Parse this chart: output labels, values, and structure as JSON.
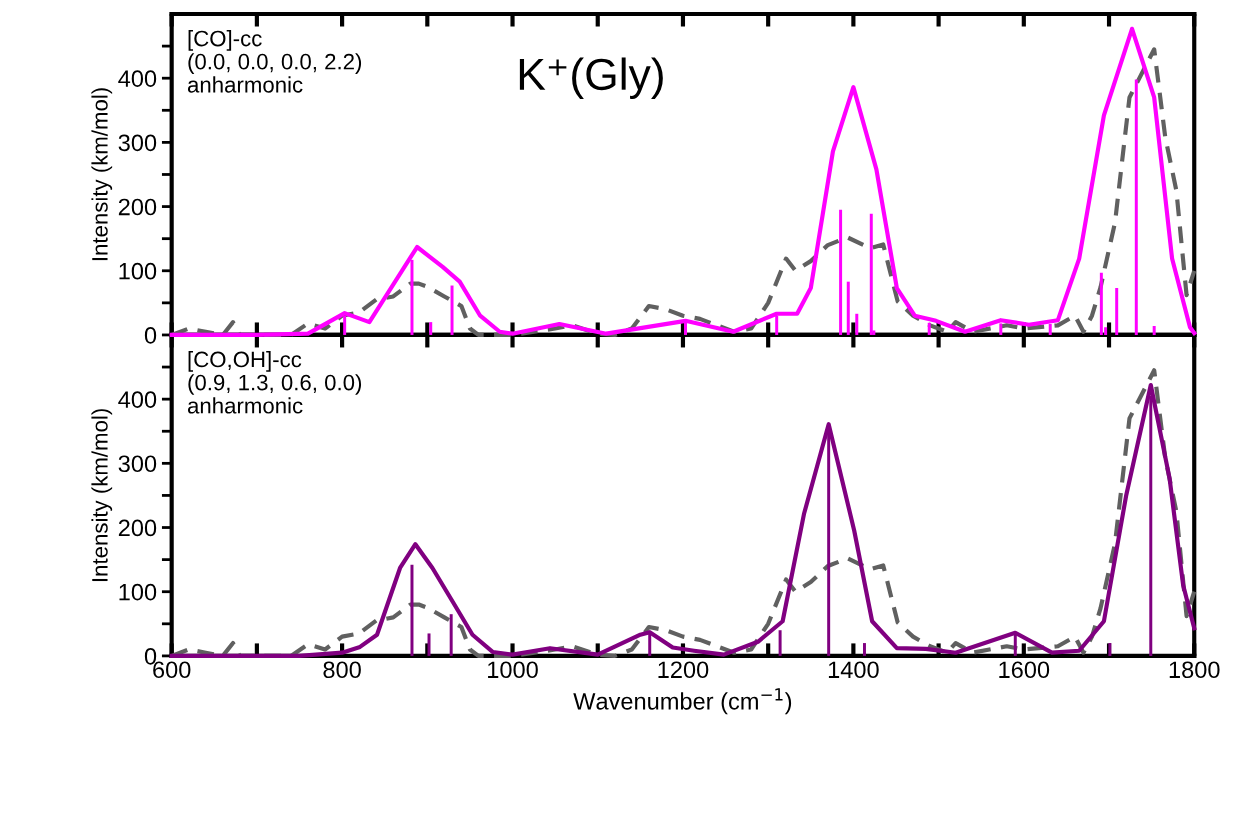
{
  "chart_data": [
    {
      "type": "line",
      "ylabel": "Intensity (km/mol)",
      "annotations": [
        "[CO]-cc\n(0.0, 0.0, 0.0, 2.2)\nanharmonic",
        "K⁺(Gly)"
      ],
      "xlim": [
        600,
        1800
      ],
      "xticks": [
        {
          "value": 600,
          "label": null
        },
        {
          "value": 700,
          "label": null
        },
        {
          "value": 800,
          "label": null
        },
        {
          "value": 900,
          "label": null
        },
        {
          "value": 1000,
          "label": null
        },
        {
          "value": 1100,
          "label": null
        },
        {
          "value": 1200,
          "label": null
        },
        {
          "value": 1300,
          "label": null
        },
        {
          "value": 1400,
          "label": null
        },
        {
          "value": 1500,
          "label": null
        },
        {
          "value": 1600,
          "label": null
        },
        {
          "value": 1700,
          "label": null
        },
        {
          "value": 1800,
          "label": null
        }
      ],
      "ylim": [
        0,
        500
      ],
      "yticks": [
        0,
        {
          "value": 50,
          "label": null
        },
        100,
        {
          "value": 150,
          "label": null
        },
        200,
        {
          "value": 250,
          "label": null
        },
        300,
        {
          "value": 350,
          "label": null
        },
        400,
        {
          "value": 450,
          "label": null
        }
      ],
      "tick_labels": "y",
      "grid": false,
      "legend": false,
      "series": [
        {
          "type": "line",
          "line_style": "dashed",
          "color": "#606060",
          "x": [
            600,
            620,
            640,
            660,
            672,
            680,
            740,
            760,
            780,
            800,
            820,
            840,
            860,
            880,
            890,
            900,
            920,
            940,
            950,
            960,
            1000,
            1050,
            1070,
            1100,
            1120,
            1140,
            1160,
            1180,
            1200,
            1220,
            1240,
            1260,
            1280,
            1300,
            1321,
            1332,
            1350,
            1370,
            1393,
            1420,
            1435,
            1452,
            1470,
            1490,
            1510,
            1520,
            1540,
            1580,
            1600,
            1640,
            1660,
            1670,
            1680,
            1690,
            1707,
            1724,
            1753,
            1766,
            1779,
            1791,
            1800
          ],
          "values": [
            0,
            10,
            5,
            0,
            20,
            0,
            0,
            18,
            10,
            30,
            35,
            55,
            60,
            80,
            80,
            75,
            60,
            45,
            10,
            0,
            0,
            10,
            15,
            2,
            0,
            10,
            45,
            40,
            30,
            25,
            15,
            5,
            10,
            50,
            119,
            100,
            115,
            140,
            152,
            135,
            141,
            52,
            30,
            15,
            5,
            20,
            5,
            15,
            10,
            15,
            30,
            5,
            30,
            74,
            175,
            370,
            445,
            308,
            225,
            62,
            100
          ]
        },
        {
          "line_style": "solid",
          "color": "#ff00ff",
          "x": [
            600,
            700,
            760,
            803,
            832,
            888,
            918,
            938,
            962,
            985,
            1000,
            1055,
            1110,
            1203,
            1259,
            1310,
            1334,
            1350,
            1376,
            1400,
            1427,
            1451,
            1472,
            1497,
            1531,
            1573,
            1606,
            1640,
            1665,
            1694,
            1727,
            1753,
            1774,
            1795,
            1800
          ],
          "values": [
            0,
            0,
            2,
            34,
            20,
            137,
            106,
            83,
            30,
            5,
            2,
            17,
            2,
            22,
            5,
            33,
            33,
            73,
            286,
            386,
            258,
            73,
            30,
            22,
            5,
            23,
            16,
            23,
            119,
            342,
            477,
            370,
            119,
            12,
            3
          ]
        },
        {
          "type": "bar",
          "color": "#ff00ff",
          "x": [
            803,
            882,
            904,
            929,
            1203,
            1310,
            1385,
            1394,
            1404,
            1421,
            1424,
            1489,
            1573,
            1631,
            1691,
            1696,
            1709,
            1732,
            1753
          ],
          "values": [
            30,
            117,
            20,
            77,
            20,
            30,
            195,
            83,
            33,
            189,
            7,
            19,
            18,
            17,
            97,
            12,
            73,
            398,
            14
          ]
        }
      ]
    },
    {
      "type": "line",
      "ylabel": "Intensity (km/mol)",
      "xlabel": "Wavenumber (cm$^{−1}$)",
      "annotations": [
        "[CO,OH]-cc\n(0.9, 1.3, 0.6, 0.0)\nanharmonic"
      ],
      "xlim": [
        600,
        1800
      ],
      "xticks": [
        600,
        {
          "value": 700,
          "label": null
        },
        800,
        {
          "value": 900,
          "label": null
        },
        1000,
        {
          "value": 1100,
          "label": null
        },
        1200,
        {
          "value": 1300,
          "label": null
        },
        1400,
        {
          "value": 1500,
          "label": null
        },
        1600,
        {
          "value": 1700,
          "label": null
        },
        1800
      ],
      "ylim": [
        0,
        500
      ],
      "yticks": [
        0,
        {
          "value": 50,
          "label": null
        },
        100,
        {
          "value": 150,
          "label": null
        },
        200,
        {
          "value": 250,
          "label": null
        },
        300,
        {
          "value": 350,
          "label": null
        },
        400,
        {
          "value": 450,
          "label": null
        }
      ],
      "grid": false,
      "legend": false,
      "series": [
        {
          "type": "line",
          "line_style": "dashed",
          "color": "#606060",
          "x": [
            600,
            620,
            640,
            660,
            672,
            680,
            740,
            760,
            780,
            800,
            820,
            840,
            860,
            880,
            890,
            900,
            920,
            940,
            950,
            960,
            1000,
            1050,
            1070,
            1100,
            1120,
            1140,
            1160,
            1180,
            1200,
            1220,
            1240,
            1260,
            1280,
            1300,
            1321,
            1332,
            1350,
            1370,
            1393,
            1420,
            1435,
            1452,
            1470,
            1490,
            1510,
            1520,
            1540,
            1580,
            1600,
            1640,
            1660,
            1670,
            1680,
            1690,
            1707,
            1724,
            1753,
            1766,
            1779,
            1791,
            1800
          ],
          "values": [
            0,
            10,
            5,
            0,
            20,
            0,
            0,
            18,
            10,
            30,
            35,
            55,
            60,
            80,
            80,
            75,
            60,
            45,
            10,
            0,
            0,
            10,
            15,
            2,
            0,
            10,
            45,
            40,
            30,
            25,
            15,
            5,
            10,
            50,
            119,
            100,
            115,
            140,
            152,
            135,
            141,
            52,
            30,
            15,
            5,
            20,
            5,
            15,
            10,
            15,
            30,
            5,
            30,
            74,
            175,
            370,
            445,
            308,
            225,
            62,
            100
          ]
        },
        {
          "line_style": "solid",
          "color": "#800080",
          "x": [
            600,
            750,
            800,
            821,
            841,
            868,
            886,
            906,
            930,
            953,
            977,
            1000,
            1044,
            1100,
            1150,
            1161,
            1188,
            1213,
            1248,
            1288,
            1317,
            1342,
            1371,
            1401,
            1422,
            1451,
            1485,
            1520,
            1590,
            1633,
            1665,
            1694,
            1720,
            1749,
            1771,
            1787,
            1800
          ],
          "values": [
            0,
            0,
            5,
            14,
            33,
            137,
            174,
            137,
            84,
            33,
            6,
            2,
            12,
            2,
            33,
            37,
            13,
            8,
            2,
            22,
            54,
            221,
            361,
            195,
            54,
            12,
            11,
            5,
            36,
            5,
            8,
            54,
            249,
            422,
            277,
            110,
            43
          ]
        },
        {
          "type": "bar",
          "color": "#800080",
          "x": [
            882,
            902,
            928,
            1161,
            1314,
            1371,
            1413,
            1590,
            1701,
            1749
          ],
          "values": [
            142,
            35,
            65,
            35,
            40,
            352,
            20,
            33,
            20,
            405
          ]
        }
      ]
    }
  ]
}
